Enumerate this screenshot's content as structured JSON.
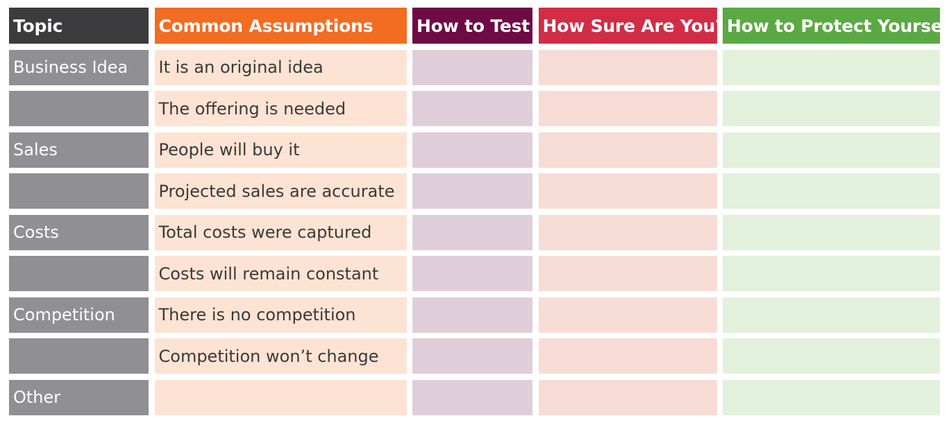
{
  "headers": {
    "topic": "Topic",
    "assumptions": "Common Assumptions",
    "test": "How to Test",
    "sure": "How Sure Are You?",
    "protect": "How to Protect Yourself"
  },
  "rows": [
    {
      "topic": "Business Idea",
      "assumption": "It is an original idea"
    },
    {
      "topic": "",
      "assumption": "The offering is needed"
    },
    {
      "topic": "Sales",
      "assumption": "People will buy it"
    },
    {
      "topic": "",
      "assumption": "Projected sales are accurate"
    },
    {
      "topic": "Costs",
      "assumption": "Total costs were captured"
    },
    {
      "topic": "",
      "assumption": "Costs will remain constant"
    },
    {
      "topic": "Competition",
      "assumption": "There is no competition"
    },
    {
      "topic": "",
      "assumption": "Competition won’t change"
    },
    {
      "topic": "Other",
      "assumption": ""
    }
  ],
  "colors": {
    "topic_header": "#3c3c3e",
    "assumptions_header": "#f26c22",
    "test_header": "#6e0a45",
    "sure_header": "#d12d46",
    "protect_header": "#5ba943",
    "topic_cell": "#8f8f94",
    "assumption_cell": "#fde3d3",
    "test_cell": "#dfced9",
    "sure_cell": "#f7dcd6",
    "protect_cell": "#e3f0dc"
  }
}
